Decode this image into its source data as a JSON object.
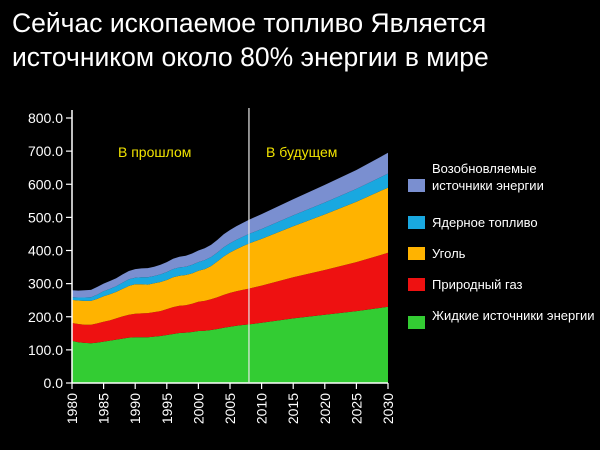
{
  "title": "Сейчас ископаемое топливо Является источником около 80% энергии в мире",
  "chart_data": {
    "type": "area",
    "stacked": true,
    "x": [
      1980,
      1981,
      1982,
      1983,
      1984,
      1985,
      1986,
      1987,
      1988,
      1989,
      1990,
      1991,
      1992,
      1993,
      1994,
      1995,
      1996,
      1997,
      1998,
      1999,
      2000,
      2001,
      2002,
      2003,
      2004,
      2005,
      2006,
      2007,
      2008,
      2010,
      2015,
      2020,
      2025,
      2030
    ],
    "x_tick_labels": [
      "1980",
      "1985",
      "1990",
      "1995",
      "2000",
      "2005",
      "2010",
      "2015",
      "2020",
      "2025",
      "2030"
    ],
    "y_tick_labels": [
      "0.0",
      "100.0",
      "200.0",
      "300.0",
      "400.0",
      "500.0",
      "600.0",
      "700.0",
      "800.0"
    ],
    "ylim": [
      0,
      800
    ],
    "xlim": [
      1980,
      2030
    ],
    "divider_x": 2008,
    "annotations": [
      "В прошлом",
      "В будущем"
    ],
    "series": [
      {
        "name": "Жидкие источники энергии",
        "color": "#33cc33",
        "values": [
          127,
          123,
          121,
          120,
          122,
          125,
          128,
          131,
          134,
          137,
          138,
          138,
          138,
          140,
          142,
          145,
          148,
          151,
          152,
          154,
          157,
          158,
          160,
          163,
          167,
          170,
          173,
          175,
          177,
          182,
          195,
          206,
          217,
          230
        ]
      },
      {
        "name": "Природный газ",
        "color": "#ee1111",
        "values": [
          54,
          55,
          55,
          56,
          58,
          60,
          61,
          64,
          67,
          69,
          71,
          72,
          73,
          74,
          75,
          78,
          81,
          82,
          83,
          85,
          88,
          90,
          93,
          96,
          99,
          102,
          104,
          106,
          108,
          112,
          124,
          135,
          148,
          163
        ]
      },
      {
        "name": "Уголь",
        "color": "#ffb300",
        "values": [
          70,
          71,
          72,
          72,
          74,
          77,
          79,
          80,
          83,
          87,
          89,
          88,
          86,
          87,
          88,
          88,
          90,
          91,
          91,
          92,
          94,
          96,
          100,
          108,
          116,
          122,
          127,
          132,
          136,
          141,
          154,
          168,
          182,
          197
        ]
      },
      {
        "name": "Ядерное топливо",
        "color": "#19a8e0",
        "values": [
          8,
          9,
          10,
          11,
          13,
          15,
          16,
          17,
          19,
          20,
          20,
          21,
          22,
          22,
          23,
          24,
          25,
          25,
          25,
          26,
          26,
          27,
          27,
          27,
          28,
          28,
          28,
          28,
          29,
          30,
          33,
          36,
          39,
          42
        ]
      },
      {
        "name": "Возобновляемые источники энергии",
        "color": "#7a8fd0",
        "values": [
          21,
          21,
          22,
          22,
          23,
          23,
          24,
          24,
          25,
          25,
          26,
          27,
          28,
          28,
          29,
          30,
          31,
          32,
          33,
          34,
          35,
          36,
          37,
          38,
          39,
          40,
          41,
          42,
          43,
          45,
          49,
          53,
          57,
          63
        ]
      }
    ]
  },
  "legend": [
    {
      "label": "Возобновляемые источники энергии",
      "color": "#7a8fd0"
    },
    {
      "label": "Ядерное топливо",
      "color": "#19a8e0"
    },
    {
      "label": "Уголь",
      "color": "#ffb300"
    },
    {
      "label": "Природный газ",
      "color": "#ee1111"
    },
    {
      "label": "Жидкие источники энергии",
      "color": "#33cc33"
    }
  ]
}
